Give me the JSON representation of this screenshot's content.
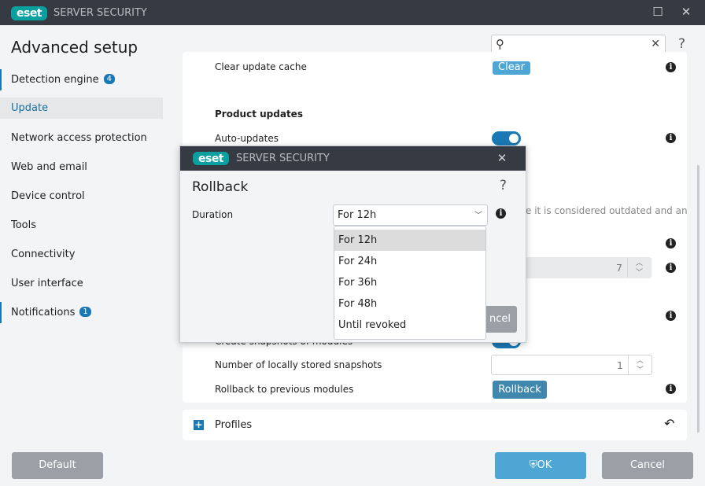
{
  "app": {
    "logo": "eset",
    "title": "SERVER SECURITY"
  },
  "header": {
    "title": "Advanced setup",
    "search": {
      "value": "",
      "placeholder": ""
    },
    "help": "?"
  },
  "sidebar": {
    "items": [
      {
        "label": "Detection engine",
        "badge": "4"
      },
      {
        "label": "Update",
        "selected": true
      },
      {
        "label": "Network access protection"
      },
      {
        "label": "Web and email"
      },
      {
        "label": "Device control"
      },
      {
        "label": "Tools"
      },
      {
        "label": "Connectivity"
      },
      {
        "label": "User interface"
      },
      {
        "label": "Notifications",
        "badge": "1"
      }
    ]
  },
  "content": {
    "clear_cache_label": "Clear update cache",
    "clear_button": "Clear",
    "product_updates_heading": "Product updates",
    "auto_updates_label": "Auto-updates",
    "auto_updates_on": true,
    "partial_text": "e it is considered outdated and an",
    "disabled_spinner_value": "7",
    "create_snapshots_label": "Create snapshots of modules",
    "create_snapshots_on": true,
    "snapshots_label": "Number of locally stored snapshots",
    "snapshots_value": "1",
    "rollback_label": "Rollback to previous modules",
    "rollback_button": "Rollback",
    "profiles_label": "Profiles"
  },
  "footer": {
    "default": "Default",
    "ok": "OK",
    "cancel": "Cancel"
  },
  "dialog": {
    "title": "Rollback",
    "help": "?",
    "duration_label": "Duration",
    "selected": "For 12h",
    "options": [
      "For 12h",
      "For 24h",
      "For 36h",
      "For 48h",
      "Until revoked"
    ],
    "cancel_partial": "ncel"
  },
  "colors": {
    "accent": "#1a78b4",
    "titlebar": "#363a42",
    "ok": "#4ea6d5",
    "gray_button": "#9aa0a6",
    "logo": "#0aa0a0"
  }
}
